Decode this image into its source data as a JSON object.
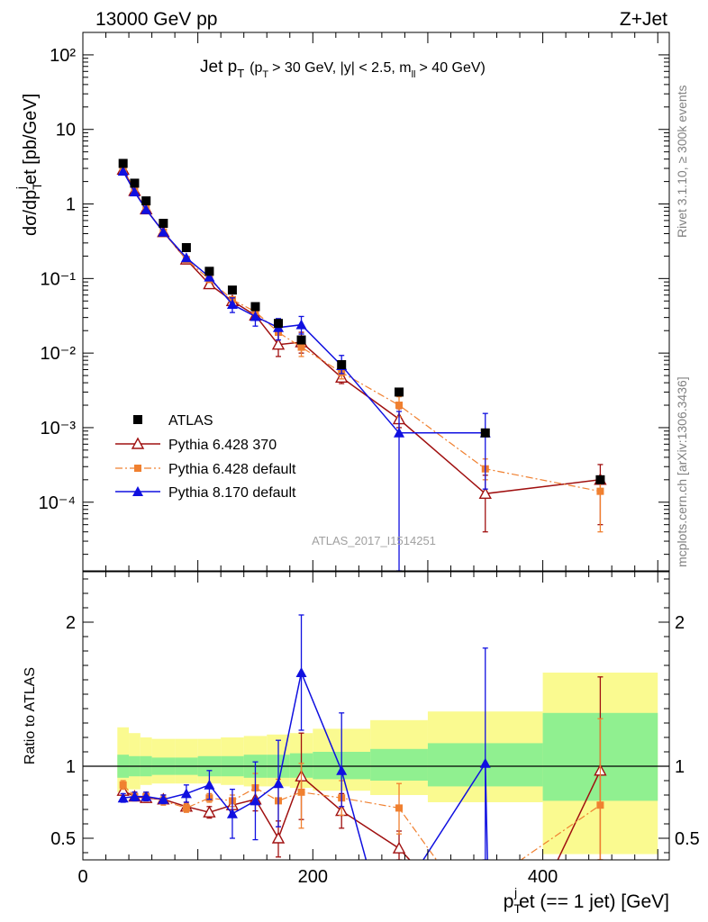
{
  "header": {
    "left": "13000 GeV pp",
    "right": "Z+Jet"
  },
  "side": {
    "rivet": "Rivet 3.1.10, ≥ 300k events",
    "mcplots": "mcplots.cern.ch [arXiv:1306.3436]"
  },
  "analysis_id": "ATLAS_2017_I1514251",
  "chart_data": [
    {
      "type": "scatter",
      "title_main": "Jet p",
      "title_sub": "T",
      "title_cuts": "(p",
      "title_cuts_sub": "T",
      "title_cuts_rest": "> 30 GeV, |y| < 2.5, m",
      "title_cuts_sub2": "ll",
      "title_cuts_end": "> 40 GeV)",
      "ylabel": "dσ/dp",
      "ylabel_sub": "T",
      "ylabel_sup": "j",
      "ylabel_rest": "et [pb/GeV]",
      "yscale": "log",
      "ylim": [
        1.2e-05,
        200
      ],
      "xlim": [
        0,
        510
      ],
      "ytick_labels": [
        "10⁻⁴",
        "10⁻³",
        "10⁻²",
        "10⁻¹",
        "1",
        "10",
        "10²"
      ],
      "legend_position": "lower-left",
      "series": [
        {
          "name": "ATLAS",
          "color": "#000000",
          "marker": "square",
          "x": [
            35,
            45,
            55,
            70,
            90,
            110,
            130,
            150,
            170,
            190,
            225,
            275,
            350,
            450
          ],
          "y": [
            3.5,
            1.9,
            1.1,
            0.55,
            0.26,
            0.125,
            0.07,
            0.042,
            0.025,
            0.015,
            0.007,
            0.003,
            0.00085,
            0.0002
          ]
        },
        {
          "name": "Pythia 6.428 370",
          "color": "#a01010",
          "marker": "triangle-open",
          "x": [
            35,
            45,
            55,
            70,
            90,
            110,
            130,
            150,
            170,
            190,
            225,
            275,
            350,
            450
          ],
          "y": [
            2.9,
            1.5,
            0.85,
            0.42,
            0.18,
            0.084,
            0.05,
            0.032,
            0.013,
            0.014,
            0.0047,
            0.0013,
            0.00013,
            0.0002
          ],
          "yerr_lo": [
            0,
            0,
            0,
            0,
            0,
            0,
            0,
            0,
            0.004,
            0.004,
            0.0008,
            0.0003,
            9e-05,
            0.00015
          ],
          "yerr_hi": [
            0,
            0,
            0,
            0,
            0,
            0,
            0,
            0,
            0.005,
            0.005,
            0.001,
            0.0005,
            0.0001,
            0.00012
          ]
        },
        {
          "name": "Pythia 6.428 default",
          "color": "#f08030",
          "marker": "square-small",
          "x": [
            35,
            45,
            55,
            70,
            90,
            110,
            130,
            150,
            170,
            190,
            225,
            275,
            350,
            450
          ],
          "y": [
            3.0,
            1.5,
            0.86,
            0.42,
            0.18,
            0.097,
            0.052,
            0.036,
            0.019,
            0.012,
            0.0055,
            0.002,
            0.00028,
            0.00014
          ],
          "yerr_lo": [
            0,
            0,
            0,
            0,
            0,
            0,
            0,
            0,
            0.004,
            0.003,
            0.001,
            0.0006,
            8e-05,
            0.0001
          ],
          "yerr_hi": [
            0,
            0,
            0,
            0,
            0,
            0,
            0,
            0,
            0.005,
            0.003,
            0.001,
            0.0006,
            0.0001,
            8e-05
          ]
        },
        {
          "name": "Pythia 8.170 default",
          "color": "#1010e0",
          "marker": "triangle",
          "x": [
            35,
            45,
            55,
            70,
            90,
            110,
            130,
            150,
            170,
            190,
            225,
            275,
            350
          ],
          "y": [
            2.75,
            1.45,
            0.84,
            0.42,
            0.19,
            0.105,
            0.045,
            0.031,
            0.022,
            0.024,
            0.0068,
            0.00085,
            0.00085
          ],
          "yerr_lo": [
            0,
            0,
            0,
            0,
            0,
            0.01,
            0.01,
            0.008,
            0.007,
            0.006,
            0.0015,
            0.00085,
            0.0007
          ],
          "yerr_hi": [
            0,
            0,
            0,
            0,
            0,
            0.01,
            0.01,
            0.008,
            0.007,
            0.007,
            0.0025,
            0.0008,
            0.0007
          ]
        }
      ]
    },
    {
      "type": "line",
      "ylabel": "Ratio to ATLAS",
      "xlabel_main": "p",
      "xlabel_sub": "T",
      "xlabel_sup": "j",
      "xlabel_rest": "et (== 1 jet) [GeV]",
      "xlim": [
        0,
        510
      ],
      "ylim": [
        0.35,
        2.35
      ],
      "xticks": [
        0,
        200,
        400
      ],
      "xtick_labels": [
        "0",
        "200",
        "400"
      ],
      "yticks": [
        0.5,
        1,
        2
      ],
      "ytick_labels": [
        "0.5",
        "1",
        "2"
      ],
      "bands": [
        {
          "x0": 30,
          "x1": 40,
          "inner": [
            0.92,
            1.08
          ],
          "outer": [
            0.82,
            1.27
          ]
        },
        {
          "x0": 40,
          "x1": 50,
          "inner": [
            0.93,
            1.07
          ],
          "outer": [
            0.84,
            1.23
          ]
        },
        {
          "x0": 50,
          "x1": 60,
          "inner": [
            0.93,
            1.07
          ],
          "outer": [
            0.87,
            1.2
          ]
        },
        {
          "x0": 60,
          "x1": 80,
          "inner": [
            0.94,
            1.06
          ],
          "outer": [
            0.88,
            1.19
          ]
        },
        {
          "x0": 80,
          "x1": 100,
          "inner": [
            0.94,
            1.06
          ],
          "outer": [
            0.88,
            1.19
          ]
        },
        {
          "x0": 100,
          "x1": 120,
          "inner": [
            0.93,
            1.07
          ],
          "outer": [
            0.88,
            1.19
          ]
        },
        {
          "x0": 120,
          "x1": 140,
          "inner": [
            0.93,
            1.07
          ],
          "outer": [
            0.87,
            1.2
          ]
        },
        {
          "x0": 140,
          "x1": 160,
          "inner": [
            0.92,
            1.08
          ],
          "outer": [
            0.86,
            1.21
          ]
        },
        {
          "x0": 160,
          "x1": 180,
          "inner": [
            0.92,
            1.08
          ],
          "outer": [
            0.86,
            1.22
          ]
        },
        {
          "x0": 180,
          "x1": 200,
          "inner": [
            0.92,
            1.09
          ],
          "outer": [
            0.85,
            1.23
          ]
        },
        {
          "x0": 200,
          "x1": 250,
          "inner": [
            0.91,
            1.1
          ],
          "outer": [
            0.83,
            1.26
          ]
        },
        {
          "x0": 250,
          "x1": 300,
          "inner": [
            0.9,
            1.12
          ],
          "outer": [
            0.8,
            1.32
          ]
        },
        {
          "x0": 300,
          "x1": 400,
          "inner": [
            0.86,
            1.16
          ],
          "outer": [
            0.75,
            1.38
          ]
        },
        {
          "x0": 400,
          "x1": 500,
          "inner": [
            0.76,
            1.37
          ],
          "outer": [
            0.39,
            1.65
          ]
        }
      ],
      "series": [
        {
          "name": "Pythia 6.428 370",
          "color": "#a01010",
          "marker": "triangle-open",
          "x": [
            35,
            45,
            55,
            70,
            90,
            110,
            130,
            150,
            170,
            190,
            225,
            275,
            290,
            410,
            450
          ],
          "y": [
            0.83,
            0.79,
            0.78,
            0.77,
            0.72,
            0.68,
            0.73,
            0.77,
            0.5,
            0.93,
            0.69,
            0.43,
            0.3,
            0.3,
            0.97
          ],
          "yerr_lo": [
            0.03,
            0.03,
            0.03,
            0.03,
            0.03,
            0.04,
            0.05,
            0.08,
            0.13,
            0.3,
            0.12,
            0.14,
            0,
            0,
            0.7
          ],
          "yerr_hi": [
            0.03,
            0.03,
            0.03,
            0.03,
            0.03,
            0.04,
            0.05,
            0.08,
            0.12,
            0.3,
            0.12,
            0.12,
            0,
            0,
            0.65
          ]
        },
        {
          "name": "Pythia 6.428 default",
          "color": "#f08030",
          "marker": "square-small",
          "x": [
            35,
            45,
            55,
            70,
            90,
            110,
            130,
            150,
            170,
            190,
            225,
            275,
            312,
            372,
            450
          ],
          "y": [
            0.87,
            0.79,
            0.79,
            0.76,
            0.71,
            0.78,
            0.76,
            0.85,
            0.76,
            0.82,
            0.78,
            0.71,
            0.3,
            0.3,
            0.73
          ],
          "yerr_lo": [
            0.03,
            0.03,
            0.03,
            0.03,
            0.03,
            0.03,
            0.04,
            0.1,
            0.18,
            0.25,
            0.12,
            0.18,
            0,
            0,
            0.6
          ],
          "yerr_hi": [
            0.03,
            0.03,
            0.03,
            0.03,
            0.03,
            0.03,
            0.04,
            0.1,
            0.15,
            0.2,
            0.12,
            0.17,
            0,
            0,
            0.6
          ]
        },
        {
          "name": "Pythia 8.170 default",
          "color": "#1010e0",
          "marker": "triangle",
          "x": [
            35,
            45,
            55,
            70,
            90,
            110,
            130,
            150,
            170,
            190,
            225,
            248,
            292,
            350,
            352
          ],
          "y": [
            0.78,
            0.79,
            0.79,
            0.77,
            0.81,
            0.87,
            0.67,
            0.76,
            0.88,
            1.65,
            0.97,
            0.3,
            0.3,
            1.02,
            0.3
          ],
          "yerr_lo": [
            0.03,
            0.03,
            0.03,
            0.03,
            0.06,
            0.1,
            0.17,
            0.27,
            0.3,
            0.4,
            0.25,
            0,
            0,
            1.0,
            0
          ],
          "yerr_hi": [
            0.03,
            0.03,
            0.03,
            0.03,
            0.06,
            0.1,
            0.17,
            0.27,
            0.3,
            0.4,
            0.4,
            0,
            0,
            0.8,
            0
          ]
        }
      ]
    }
  ],
  "colors": {
    "band_inner": "#90f090",
    "band_outer": "#fafa90"
  }
}
